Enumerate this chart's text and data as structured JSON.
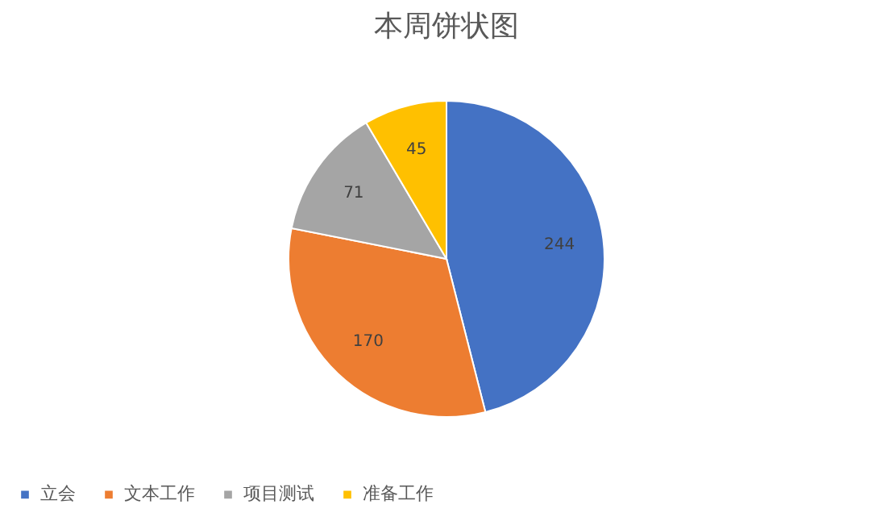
{
  "chart_data": {
    "type": "pie",
    "title": "本周饼状图",
    "categories": [
      "立会",
      "文本工作",
      "项目测试",
      "准备工作"
    ],
    "values": [
      244,
      170,
      71,
      45
    ],
    "colors": [
      "#4472c4",
      "#ed7d31",
      "#a5a5a5",
      "#ffc000"
    ],
    "data_labels": true,
    "legend": "bottom"
  }
}
